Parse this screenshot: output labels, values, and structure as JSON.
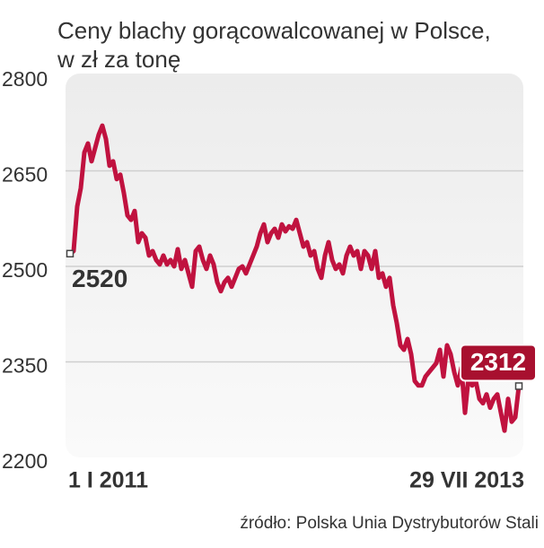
{
  "chart_data": {
    "type": "line",
    "title": "Ceny blachy gorącowalcowanej w Polsce,",
    "subtitle": "w zł za tonę",
    "source": "źródło: Polska Unia Dystrybutorów Stali",
    "color": "#c0123f",
    "grid": true,
    "ylim": [
      2200,
      2800
    ],
    "yticks": [
      2200,
      2350,
      2500,
      2650,
      2800
    ],
    "categories": [
      "1 I 2011",
      null,
      null,
      null,
      null,
      null,
      null,
      null,
      null,
      null,
      null,
      null,
      null,
      null,
      null,
      null,
      null,
      null,
      null,
      null,
      null,
      null,
      null,
      null,
      null,
      null,
      null,
      null,
      null,
      null,
      null,
      null,
      null,
      null,
      null,
      null,
      null,
      null,
      null,
      null,
      null,
      null,
      null,
      null,
      null,
      null,
      null,
      null,
      null,
      null,
      null,
      null,
      null,
      null,
      null,
      null,
      null,
      null,
      null,
      null,
      null,
      null,
      null,
      null,
      null,
      null,
      null,
      null,
      null,
      null,
      null,
      null,
      null,
      null,
      null,
      null,
      null,
      null,
      null,
      null,
      null,
      null,
      null,
      null,
      null,
      null,
      null,
      null,
      null,
      null,
      null,
      null,
      null,
      null,
      null,
      null,
      null,
      null,
      null,
      null,
      null,
      null,
      null,
      null,
      null,
      null,
      null,
      null,
      null,
      null,
      null,
      null,
      null,
      null,
      null,
      null,
      null,
      null,
      null,
      null,
      null,
      null,
      null,
      null,
      null,
      "29 VII 2013"
    ],
    "values": [
      2520,
      2524,
      2594,
      2623,
      2679,
      2693,
      2665,
      2686,
      2707,
      2721,
      2700,
      2658,
      2665,
      2637,
      2644,
      2615,
      2580,
      2573,
      2587,
      2538,
      2552,
      2545,
      2517,
      2524,
      2510,
      2503,
      2517,
      2503,
      2510,
      2500,
      2527,
      2496,
      2510,
      2489,
      2468,
      2524,
      2531,
      2510,
      2496,
      2517,
      2503,
      2475,
      2461,
      2475,
      2482,
      2468,
      2482,
      2496,
      2500,
      2489,
      2503,
      2517,
      2531,
      2552,
      2566,
      2538,
      2552,
      2559,
      2545,
      2566,
      2555,
      2563,
      2559,
      2573,
      2552,
      2531,
      2538,
      2517,
      2524,
      2496,
      2482,
      2517,
      2538,
      2510,
      2496,
      2503,
      2489,
      2517,
      2531,
      2517,
      2524,
      2496,
      2524,
      2517,
      2496,
      2524,
      2482,
      2489,
      2468,
      2482,
      2439,
      2411,
      2376,
      2369,
      2386,
      2362,
      2320,
      2313,
      2313,
      2327,
      2334,
      2341,
      2348,
      2369,
      2327,
      2376,
      2362,
      2334,
      2313,
      2341,
      2270,
      2327,
      2313,
      2320,
      2292,
      2285,
      2299,
      2278,
      2292,
      2299,
      2270,
      2242,
      2292,
      2256,
      2263,
      2312
    ]
  }
}
